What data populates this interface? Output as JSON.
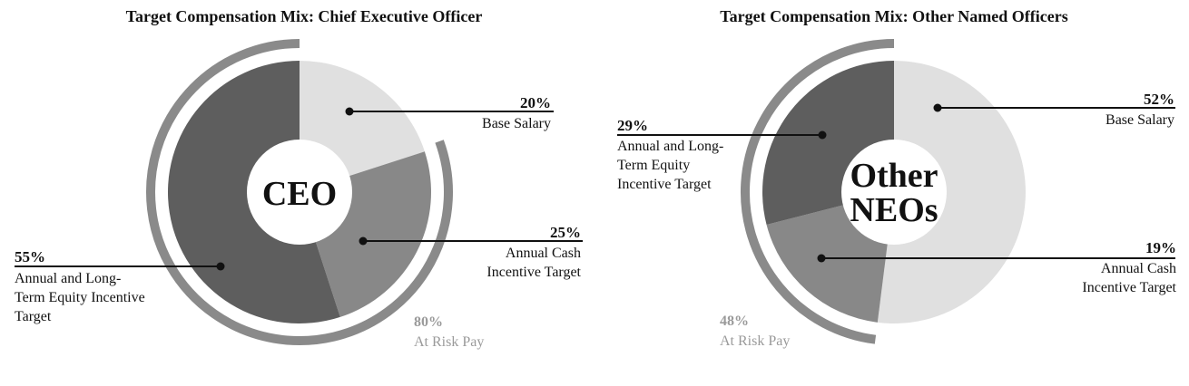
{
  "chart_data": [
    {
      "type": "pie",
      "title": "Target Compensation Mix: Chief Executive Officer",
      "center_label": [
        "CEO"
      ],
      "slices": [
        {
          "key": "base",
          "value": 20,
          "pct_label": "20%",
          "label_lines": [
            "Base Salary"
          ],
          "color": "#e0e0e0"
        },
        {
          "key": "cash",
          "value": 25,
          "pct_label": "25%",
          "label_lines": [
            "Annual Cash",
            "Incentive Target"
          ],
          "color": "#888888"
        },
        {
          "key": "equity",
          "value": 55,
          "pct_label": "55%",
          "label_lines": [
            "Annual and Long-",
            "Term Equity Incentive",
            "Target"
          ],
          "color": "#5e5e5e"
        }
      ],
      "at_risk": {
        "value": 80,
        "pct_label": "80%",
        "label": "At Risk Pay",
        "color": "#8a8a8a"
      }
    },
    {
      "type": "pie",
      "title": "Target Compensation Mix: Other Named Officers",
      "center_label": [
        "Other",
        "NEOs"
      ],
      "slices": [
        {
          "key": "base",
          "value": 52,
          "pct_label": "52%",
          "label_lines": [
            "Base Salary"
          ],
          "color": "#e0e0e0"
        },
        {
          "key": "cash",
          "value": 19,
          "pct_label": "19%",
          "label_lines": [
            "Annual Cash",
            "Incentive Target"
          ],
          "color": "#888888"
        },
        {
          "key": "equity",
          "value": 29,
          "pct_label": "29%",
          "label_lines": [
            "Annual and Long-",
            "Term Equity",
            "Incentive Target"
          ],
          "color": "#5e5e5e"
        }
      ],
      "at_risk": {
        "value": 48,
        "pct_label": "48%",
        "label": "At Risk Pay",
        "color": "#8a8a8a"
      }
    }
  ]
}
